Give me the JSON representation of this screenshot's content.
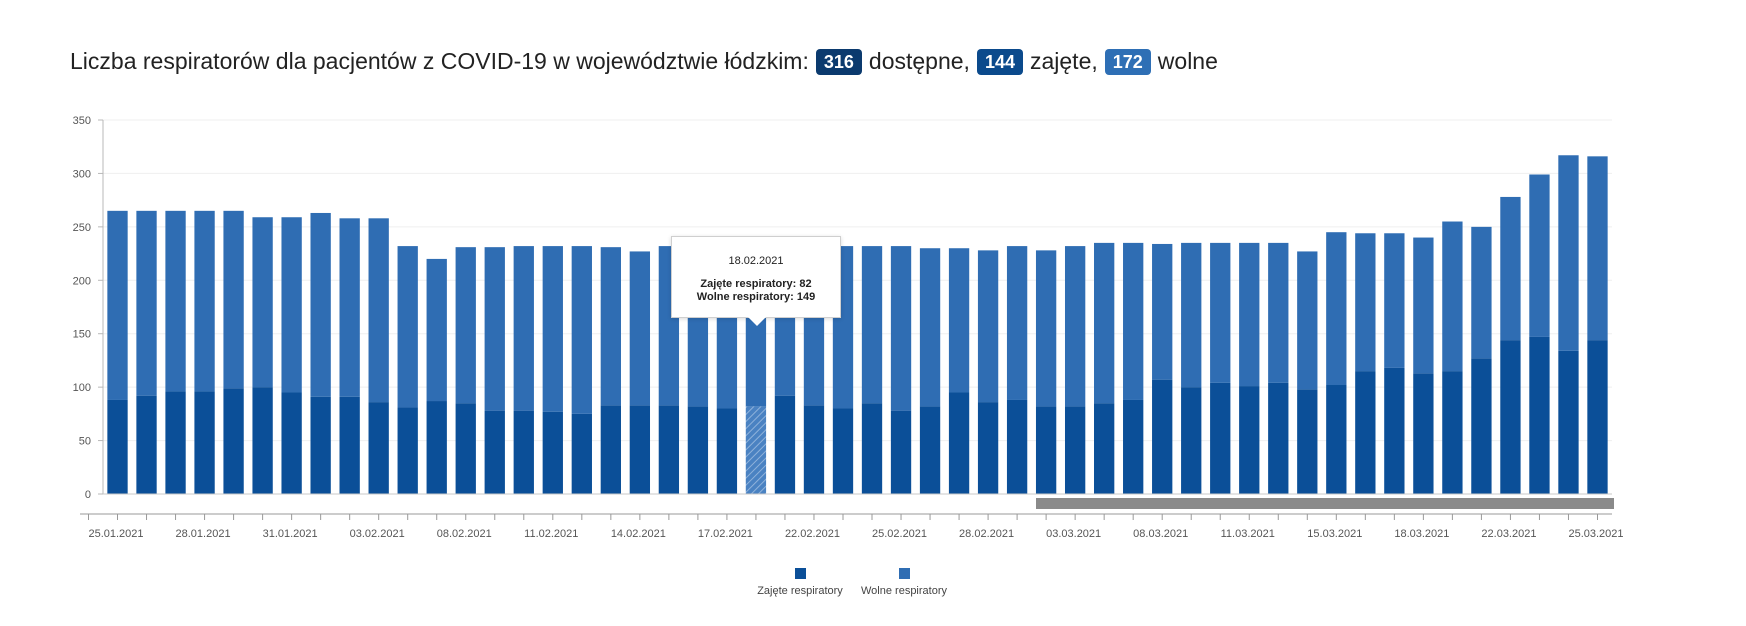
{
  "header": {
    "prefix": "Liczba respiratorów dla pacjentów z COVID-19 w województwie łódzkim:",
    "available_value": "316",
    "available_label": "dostępne,",
    "occupied_value": "144",
    "occupied_label": "zajęte,",
    "free_value": "172",
    "free_label": "wolne"
  },
  "colors": {
    "badge_available": "#0b3a6e",
    "badge_occupied": "#0b4a8c",
    "badge_free": "#2e6fb5",
    "occupied": "#0b4f98",
    "free": "#2f6db3",
    "scrollbar": "#8a8a8a"
  },
  "tooltip": {
    "date": "18.02.2021",
    "occupied_text": "Zajęte respiratory: 82",
    "free_text": "Wolne respiratory: 149"
  },
  "chart_data": {
    "type": "bar",
    "stacked": true,
    "ylim": [
      0,
      350
    ],
    "y_ticks": [
      "0",
      "50",
      "100",
      "150",
      "200",
      "250",
      "300",
      "350"
    ],
    "x_tick_labels": [
      "25.01.2021",
      "28.01.2021",
      "31.01.2021",
      "03.02.2021",
      "08.02.2021",
      "11.02.2021",
      "14.02.2021",
      "17.02.2021",
      "22.02.2021",
      "25.02.2021",
      "28.02.2021",
      "03.03.2021",
      "08.03.2021",
      "11.03.2021",
      "15.03.2021",
      "18.03.2021",
      "22.03.2021",
      "25.03.2021"
    ],
    "highlighted_index": 22,
    "series": [
      {
        "name": "Zajęte respiratory",
        "values": [
          88,
          92,
          96,
          96,
          99,
          100,
          95,
          91,
          91,
          86,
          81,
          87,
          85,
          78,
          78,
          77,
          75,
          83,
          83,
          83,
          82,
          80,
          82,
          92,
          83,
          80,
          85,
          78,
          82,
          95,
          86,
          88,
          82,
          82,
          85,
          88,
          107,
          100,
          104,
          101,
          104,
          98,
          102,
          115,
          118,
          113,
          115,
          127,
          144,
          147,
          134,
          144
        ]
      },
      {
        "name": "Wolne respiratory",
        "values": [
          177,
          173,
          169,
          169,
          166,
          159,
          164,
          172,
          167,
          172,
          151,
          133,
          146,
          153,
          154,
          155,
          157,
          148,
          144,
          149,
          150,
          151,
          149,
          140,
          149,
          152,
          147,
          154,
          148,
          135,
          142,
          144,
          146,
          150,
          150,
          147,
          127,
          135,
          131,
          134,
          131,
          129,
          143,
          129,
          126,
          127,
          140,
          123,
          134,
          152,
          183,
          172
        ]
      }
    ],
    "legend": [
      "Zajęte respiratory",
      "Wolne respiratory"
    ],
    "legend_position": "bottom-center"
  }
}
